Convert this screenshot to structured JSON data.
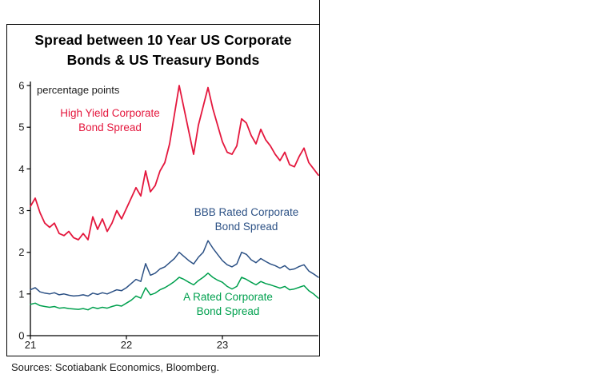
{
  "title": "Spread between 10 Year US Corporate\nBonds & US Treasury Bonds",
  "source": "Sources: Scotiabank Economics, Bloomberg.",
  "chart_data": {
    "type": "line",
    "title": "Spread between 10 Year US Corporate Bonds & US Treasury Bonds",
    "unit_label": "percentage points",
    "xlabel": "",
    "ylabel": "percentage points",
    "xlim": [
      21,
      24
    ],
    "ylim": [
      0,
      6
    ],
    "grid": false,
    "legend_position": "inline-annotations",
    "yticks": [
      "0",
      "1",
      "2",
      "3",
      "4",
      "5",
      "6"
    ],
    "xticks": [
      {
        "value": 21,
        "label": "21"
      },
      {
        "value": 22,
        "label": "22"
      },
      {
        "value": 23,
        "label": "23"
      }
    ],
    "x_start": 21.0,
    "x_step": 0.05,
    "series": [
      {
        "name": "High Yield Corporate Bond Spread",
        "label": "High Yield Corporate\nBond Spread",
        "color": "#e4173d",
        "stroke_width": 1.8,
        "values": [
          3.1,
          3.3,
          2.95,
          2.7,
          2.6,
          2.7,
          2.45,
          2.4,
          2.5,
          2.35,
          2.3,
          2.45,
          2.3,
          2.85,
          2.55,
          2.8,
          2.5,
          2.7,
          3.0,
          2.8,
          3.05,
          3.3,
          3.55,
          3.35,
          3.95,
          3.45,
          3.6,
          3.95,
          4.15,
          4.6,
          5.3,
          6.0,
          5.45,
          4.9,
          4.35,
          5.05,
          5.5,
          5.95,
          5.45,
          5.05,
          4.65,
          4.4,
          4.35,
          4.55,
          5.2,
          5.1,
          4.8,
          4.6,
          4.95,
          4.7,
          4.55,
          4.35,
          4.2,
          4.4,
          4.1,
          4.05,
          4.3,
          4.5,
          4.15,
          4.0,
          3.85
        ]
      },
      {
        "name": "BBB Rated Corporate Bond Spread",
        "label": "BBB Rated Corporate\nBond Spread",
        "color": "#2c5185",
        "stroke_width": 1.5,
        "values": [
          1.1,
          1.15,
          1.05,
          1.02,
          1.0,
          1.03,
          0.98,
          1.0,
          0.97,
          0.95,
          0.96,
          0.98,
          0.95,
          1.02,
          0.99,
          1.03,
          1.0,
          1.05,
          1.1,
          1.08,
          1.15,
          1.25,
          1.35,
          1.3,
          1.73,
          1.45,
          1.5,
          1.6,
          1.65,
          1.75,
          1.85,
          2.0,
          1.9,
          1.8,
          1.72,
          1.88,
          2.0,
          2.28,
          2.1,
          1.95,
          1.8,
          1.7,
          1.65,
          1.72,
          2.0,
          1.95,
          1.82,
          1.75,
          1.85,
          1.78,
          1.72,
          1.68,
          1.62,
          1.68,
          1.58,
          1.6,
          1.66,
          1.7,
          1.55,
          1.48,
          1.4
        ]
      },
      {
        "name": "A Rated Corporate Bond Spread",
        "label": "A Rated Corporate\nBond Spread",
        "color": "#00a04e",
        "stroke_width": 1.5,
        "values": [
          0.75,
          0.78,
          0.72,
          0.7,
          0.68,
          0.7,
          0.66,
          0.67,
          0.65,
          0.64,
          0.63,
          0.65,
          0.62,
          0.68,
          0.65,
          0.68,
          0.66,
          0.7,
          0.73,
          0.71,
          0.78,
          0.85,
          0.95,
          0.9,
          1.15,
          0.98,
          1.02,
          1.1,
          1.15,
          1.22,
          1.3,
          1.4,
          1.35,
          1.28,
          1.22,
          1.32,
          1.4,
          1.5,
          1.4,
          1.33,
          1.28,
          1.18,
          1.12,
          1.18,
          1.4,
          1.35,
          1.28,
          1.22,
          1.3,
          1.25,
          1.22,
          1.18,
          1.14,
          1.18,
          1.1,
          1.12,
          1.16,
          1.2,
          1.08,
          1.0,
          0.9
        ]
      }
    ]
  }
}
